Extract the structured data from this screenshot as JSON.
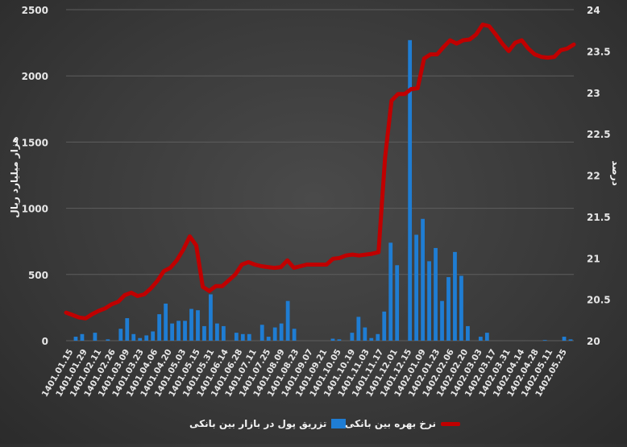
{
  "chart_data": {
    "type": "bar+line",
    "y_left": {
      "label": "هزار میلیارد ریال",
      "lim": [
        0,
        2500
      ],
      "ticks": [
        "0",
        "500",
        "1000",
        "1500",
        "2000",
        "2500"
      ]
    },
    "y_right": {
      "label": "درصد",
      "lim": [
        20,
        24
      ],
      "ticks": [
        "20",
        "20.5",
        "21",
        "21.5",
        "22",
        "22.5",
        "23",
        "23.5",
        "24"
      ]
    },
    "categories_shown": [
      "1401.01.15",
      "1401.01.29",
      "1401.02.11",
      "1401.02.26",
      "1401.03.09",
      "1401.03.23",
      "1401.04.06",
      "1401.04.20",
      "1401.05.03",
      "1401.05.15",
      "1401.05.31",
      "1401.06.14",
      "1401.06.28",
      "1401.07.11",
      "1401.07.25",
      "1401.08.09",
      "1401.08.23",
      "1401.09.07",
      "1401.09.21",
      "1401.10.05",
      "1401.10.19",
      "1401.11.03",
      "1401.11.17",
      "1401.12.01",
      "1401.12.15",
      "1402.01.09",
      "1402.01.23",
      "1402.02.06",
      "1402.02.20",
      "1402.03.03",
      "1402.03.17",
      "1402.03.31",
      "1402.04.14",
      "1402.04.28",
      "1402.05.11",
      "1402.05.25"
    ],
    "series": [
      {
        "name": "تزریق پول در بازار بین بانکی",
        "type": "bar",
        "axis": "left",
        "values": [
          0,
          30,
          50,
          0,
          60,
          0,
          10,
          0,
          90,
          170,
          50,
          20,
          40,
          70,
          200,
          280,
          130,
          150,
          150,
          240,
          230,
          110,
          350,
          130,
          110,
          0,
          60,
          50,
          50,
          0,
          120,
          30,
          100,
          130,
          300,
          90,
          0,
          0,
          0,
          0,
          0,
          15,
          10,
          0,
          60,
          180,
          100,
          20,
          50,
          220,
          740,
          570,
          0,
          2270,
          800,
          920,
          600,
          700,
          300,
          480,
          670,
          490,
          110,
          0,
          30,
          60,
          0,
          0,
          0,
          0,
          0,
          0,
          0,
          0,
          5,
          0,
          0,
          30,
          10
        ]
      },
      {
        "name": "نرخ بهره بین بانکی",
        "type": "line",
        "axis": "right",
        "values": [
          20.34,
          20.31,
          20.28,
          20.27,
          20.32,
          20.36,
          20.39,
          20.44,
          20.47,
          20.55,
          20.58,
          20.54,
          20.56,
          20.63,
          20.72,
          20.84,
          20.88,
          20.97,
          21.1,
          21.26,
          21.15,
          20.65,
          20.6,
          20.66,
          20.66,
          20.73,
          20.8,
          20.92,
          20.95,
          20.92,
          20.9,
          20.89,
          20.88,
          20.89,
          20.97,
          20.88,
          20.9,
          20.92,
          20.92,
          20.92,
          20.92,
          20.99,
          21.0,
          21.03,
          21.04,
          21.03,
          21.04,
          21.05,
          21.07,
          22.21,
          22.9,
          22.98,
          22.98,
          23.04,
          23.05,
          23.41,
          23.46,
          23.46,
          23.55,
          23.63,
          23.59,
          23.63,
          23.64,
          23.7,
          23.82,
          23.8,
          23.7,
          23.59,
          23.5,
          23.6,
          23.63,
          23.53,
          23.46,
          23.43,
          23.42,
          23.43,
          23.51,
          23.53,
          23.58
        ]
      }
    ]
  },
  "legend": {
    "bar_label": "تزریق پول در بازار بین بانکی",
    "line_label": "نرخ بهره بین بانکی",
    "bar_color": "#1f7dd3",
    "line_color": "#c00000"
  }
}
